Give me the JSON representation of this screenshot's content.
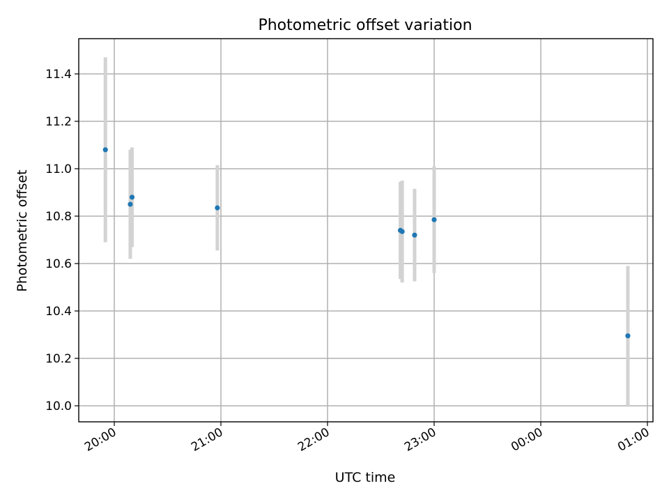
{
  "chart_data": {
    "type": "scatter",
    "title": "Photometric offset variation",
    "xlabel": "UTC time",
    "ylabel": "Photometric offset",
    "x_ticks": [
      "20:00",
      "21:00",
      "22:00",
      "23:00",
      "00:00",
      "01:00"
    ],
    "y_ticks": [
      "10.0",
      "10.2",
      "10.4",
      "10.6",
      "10.8",
      "11.0",
      "11.2",
      "11.4"
    ],
    "grid": true,
    "colors": {
      "point": "#1f77b4",
      "errorbar": "#d3d3d3"
    },
    "series": [
      {
        "points": [
          {
            "time": "19:55",
            "y": 11.08,
            "yerr": 0.39
          },
          {
            "time": "20:09",
            "y": 10.85,
            "yerr": 0.23
          },
          {
            "time": "20:10",
            "y": 10.88,
            "yerr": 0.21
          },
          {
            "time": "20:58",
            "y": 10.835,
            "yerr": 0.18
          },
          {
            "time": "22:41",
            "y": 10.74,
            "yerr": 0.205
          },
          {
            "time": "22:42",
            "y": 10.735,
            "yerr": 0.215
          },
          {
            "time": "22:49",
            "y": 10.72,
            "yerr": 0.195
          },
          {
            "time": "23:00",
            "y": 10.785,
            "yerr": 0.225
          },
          {
            "time": "00:49",
            "y": 10.295,
            "yerr": 0.295
          }
        ]
      }
    ]
  }
}
